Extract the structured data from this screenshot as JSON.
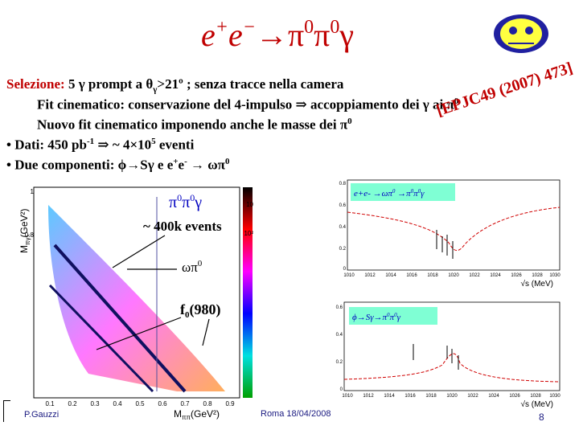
{
  "slide": {
    "title": {
      "base1": "e",
      "sup1": "+",
      "base2": "e",
      "sup2": "−",
      "arrow": "→",
      "p1": "π",
      "sup3": "0",
      "p2": "π",
      "sup4": "0",
      "gamma": "γ"
    },
    "logo_label": "KLOE logo",
    "lines": {
      "selection_label": "Selezione:",
      "selection_text": " 5 γ prompt a θ",
      "selection_sub": "γ",
      "selection_rest": ">21º ; senza tracce nella camera",
      "fit1": "Fit cinematico: conservazione del 4-impulso ⇒ accoppiamento dei γ ai π",
      "fit1_sup": "0",
      "fit2": "Nuovo fit cinematico imponendo anche le masse dei π",
      "fit2_sup": "0",
      "data_pre": "• Dati: 450 pb",
      "data_sup": "-1",
      "data_mid": " ⇒ ~ 4×10",
      "data_sup2": "5",
      "data_end": " eventi",
      "comp_pre": "• Due componenti: ϕ→Sγ e e",
      "comp_sup1": "+",
      "comp_mid": "e",
      "comp_sup2": "-",
      "comp_end": " → ωπ",
      "comp_sup3": "0"
    },
    "reference": "[EPJC49 (2007) 473]",
    "dalitz": {
      "label_main_a": "π",
      "label_main_sup1": "0",
      "label_main_b": "π",
      "label_main_sup2": "0",
      "label_main_c": "γ",
      "events": "~ 400k events",
      "omega": "ωπ",
      "omega_sup": "0",
      "f0": "f",
      "f0_sub": "0",
      "f0_rest": "(980)",
      "ylabel": "M",
      "ylabel_sub": "πγ",
      "ylabel_unit": "(GeV²)",
      "xlabel": "M",
      "xlabel_sub": "ππ",
      "xlabel_unit": "(GeV²)",
      "color_tick_top": "10",
      "color_tick_mid": "10²",
      "x_ticks": [
        "0.1",
        "0.2",
        "0.3",
        "0.4",
        "0.5",
        "0.6",
        "0.7",
        "0.8",
        "0.9"
      ],
      "y_ticks": [
        "1",
        "0.8"
      ]
    },
    "plot1": {
      "legend_a": "e+e- ",
      "legend_b": "→ωπ",
      "legend_sup1": "0",
      "legend_c": " →π",
      "legend_sup2": "0",
      "legend_d": "π",
      "legend_sup3": "0",
      "legend_e": "γ",
      "y_ticks": [
        "0.8",
        "0.6",
        "0.4",
        "0.2",
        "0"
      ],
      "x_ticks": [
        "1010",
        "1012",
        "1014",
        "1016",
        "1018",
        "1020",
        "1022",
        "1024",
        "1026",
        "1028",
        "1030"
      ],
      "xlabel": "√s (MeV)",
      "ylim": [
        0,
        0.8
      ],
      "xlim": [
        1010,
        1030
      ]
    },
    "plot2": {
      "legend_a": "ϕ→Sγ→π",
      "legend_sup1": "0",
      "legend_b": "π",
      "legend_sup2": "0",
      "legend_c": "γ",
      "y_ticks": [
        "0.6",
        "0.4",
        "0.2",
        "0"
      ],
      "x_ticks": [
        "1010",
        "1012",
        "1014",
        "1016",
        "1018",
        "1020",
        "1022",
        "1024",
        "1026",
        "1028",
        "1030"
      ],
      "xlabel": "√s (MeV)",
      "ylim": [
        0,
        0.6
      ],
      "xlim": [
        1010,
        1030
      ]
    },
    "footer": {
      "author": "P.Gauzzi",
      "venue_date": "Roma 18/04/2008",
      "page": "8"
    },
    "colors": {
      "title": "#c00000",
      "text": "#000000",
      "label": "#0000c0",
      "fit": "#c00000",
      "legend_bg": "#7fffd4"
    }
  }
}
